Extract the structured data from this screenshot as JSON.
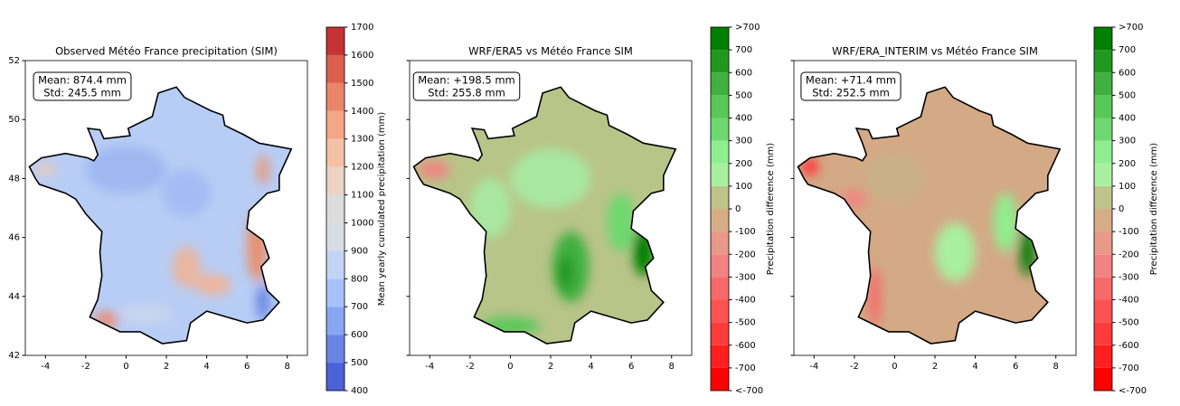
{
  "panels": [
    {
      "title": "Observed Météo France precipitation (SIM)",
      "mean_label": "Mean: 874.4 mm",
      "std_label": "Std: 245.5 mm",
      "xlim": [
        -5,
        9
      ],
      "xticks": [
        -4,
        -2,
        0,
        2,
        4,
        6,
        8
      ],
      "ylim": [
        42,
        52
      ],
      "yticks": [
        42,
        44,
        46,
        48,
        50,
        52
      ],
      "ytick_labels": true,
      "colorbar": {
        "label": "Mean yearly cumulated  precipitation (mm)",
        "lim": [
          400,
          1700
        ],
        "ticks": [
          400,
          500,
          600,
          700,
          800,
          900,
          1000,
          1100,
          1200,
          1300,
          1400,
          1500,
          1600,
          1700
        ],
        "colors": [
          "#4d62d7",
          "#6a84e6",
          "#8aa6f2",
          "#a9c1fa",
          "#c3d4f7",
          "#d8dde5",
          "#dcdcdc",
          "#ecd3c5",
          "#f4c0a6",
          "#f4a585",
          "#e9866a",
          "#d8604d",
          "#c53334"
        ]
      }
    },
    {
      "title": "WRF/ERA5 vs Météo France SIM",
      "mean_label": "Mean: +198.5 mm",
      "std_label": "Std: 255.8 mm",
      "xlim": [
        -5,
        9
      ],
      "xticks": [
        -4,
        -2,
        0,
        2,
        4,
        6,
        8
      ],
      "ylim": [
        42,
        52
      ],
      "yticks": [
        42,
        44,
        46,
        48,
        50,
        52
      ],
      "ytick_labels": false,
      "colorbar": {
        "label": "Precipitation difference (mm)",
        "lim": [
          -800,
          800
        ],
        "ticks": [
          {
            "value": -800,
            "label": "<-700"
          },
          -700,
          -600,
          -500,
          -400,
          -300,
          -200,
          -100,
          0,
          100,
          200,
          300,
          400,
          500,
          600,
          700,
          {
            "value": 800,
            "label": ">700"
          }
        ],
        "colors": [
          "#ff0000",
          "#ff1f1f",
          "#ff3a3a",
          "#fc5252",
          "#f76a6a",
          "#f28383",
          "#ea9888",
          "#d6ad87",
          "#bfc48a",
          "#a8f0a0",
          "#90ee90",
          "#70d870",
          "#58c858",
          "#40b040",
          "#209820",
          "#007f00"
        ]
      }
    },
    {
      "title": "WRF/ERA_INTERIM vs Météo France SIM",
      "mean_label": "Mean: +71.4 mm",
      "std_label": "Std: 252.5 mm",
      "xlim": [
        -5,
        9
      ],
      "xticks": [
        -4,
        -2,
        0,
        2,
        4,
        6,
        8
      ],
      "ylim": [
        42,
        52
      ],
      "yticks": [
        42,
        44,
        46,
        48,
        50,
        52
      ],
      "ytick_labels": false,
      "colorbar": {
        "label": "Precipitation difference (mm)",
        "lim": [
          -800,
          800
        ],
        "ticks": [
          {
            "value": -800,
            "label": "<-700"
          },
          -700,
          -600,
          -500,
          -400,
          -300,
          -200,
          -100,
          0,
          100,
          200,
          300,
          400,
          500,
          600,
          700,
          {
            "value": 800,
            "label": ">700"
          }
        ],
        "colors": [
          "#ff0000",
          "#ff1f1f",
          "#ff3a3a",
          "#fc5252",
          "#f76a6a",
          "#f28383",
          "#ea9888",
          "#d6ad87",
          "#bfc48a",
          "#a8f0a0",
          "#90ee90",
          "#70d870",
          "#58c858",
          "#40b040",
          "#209820",
          "#007f00"
        ]
      }
    }
  ]
}
